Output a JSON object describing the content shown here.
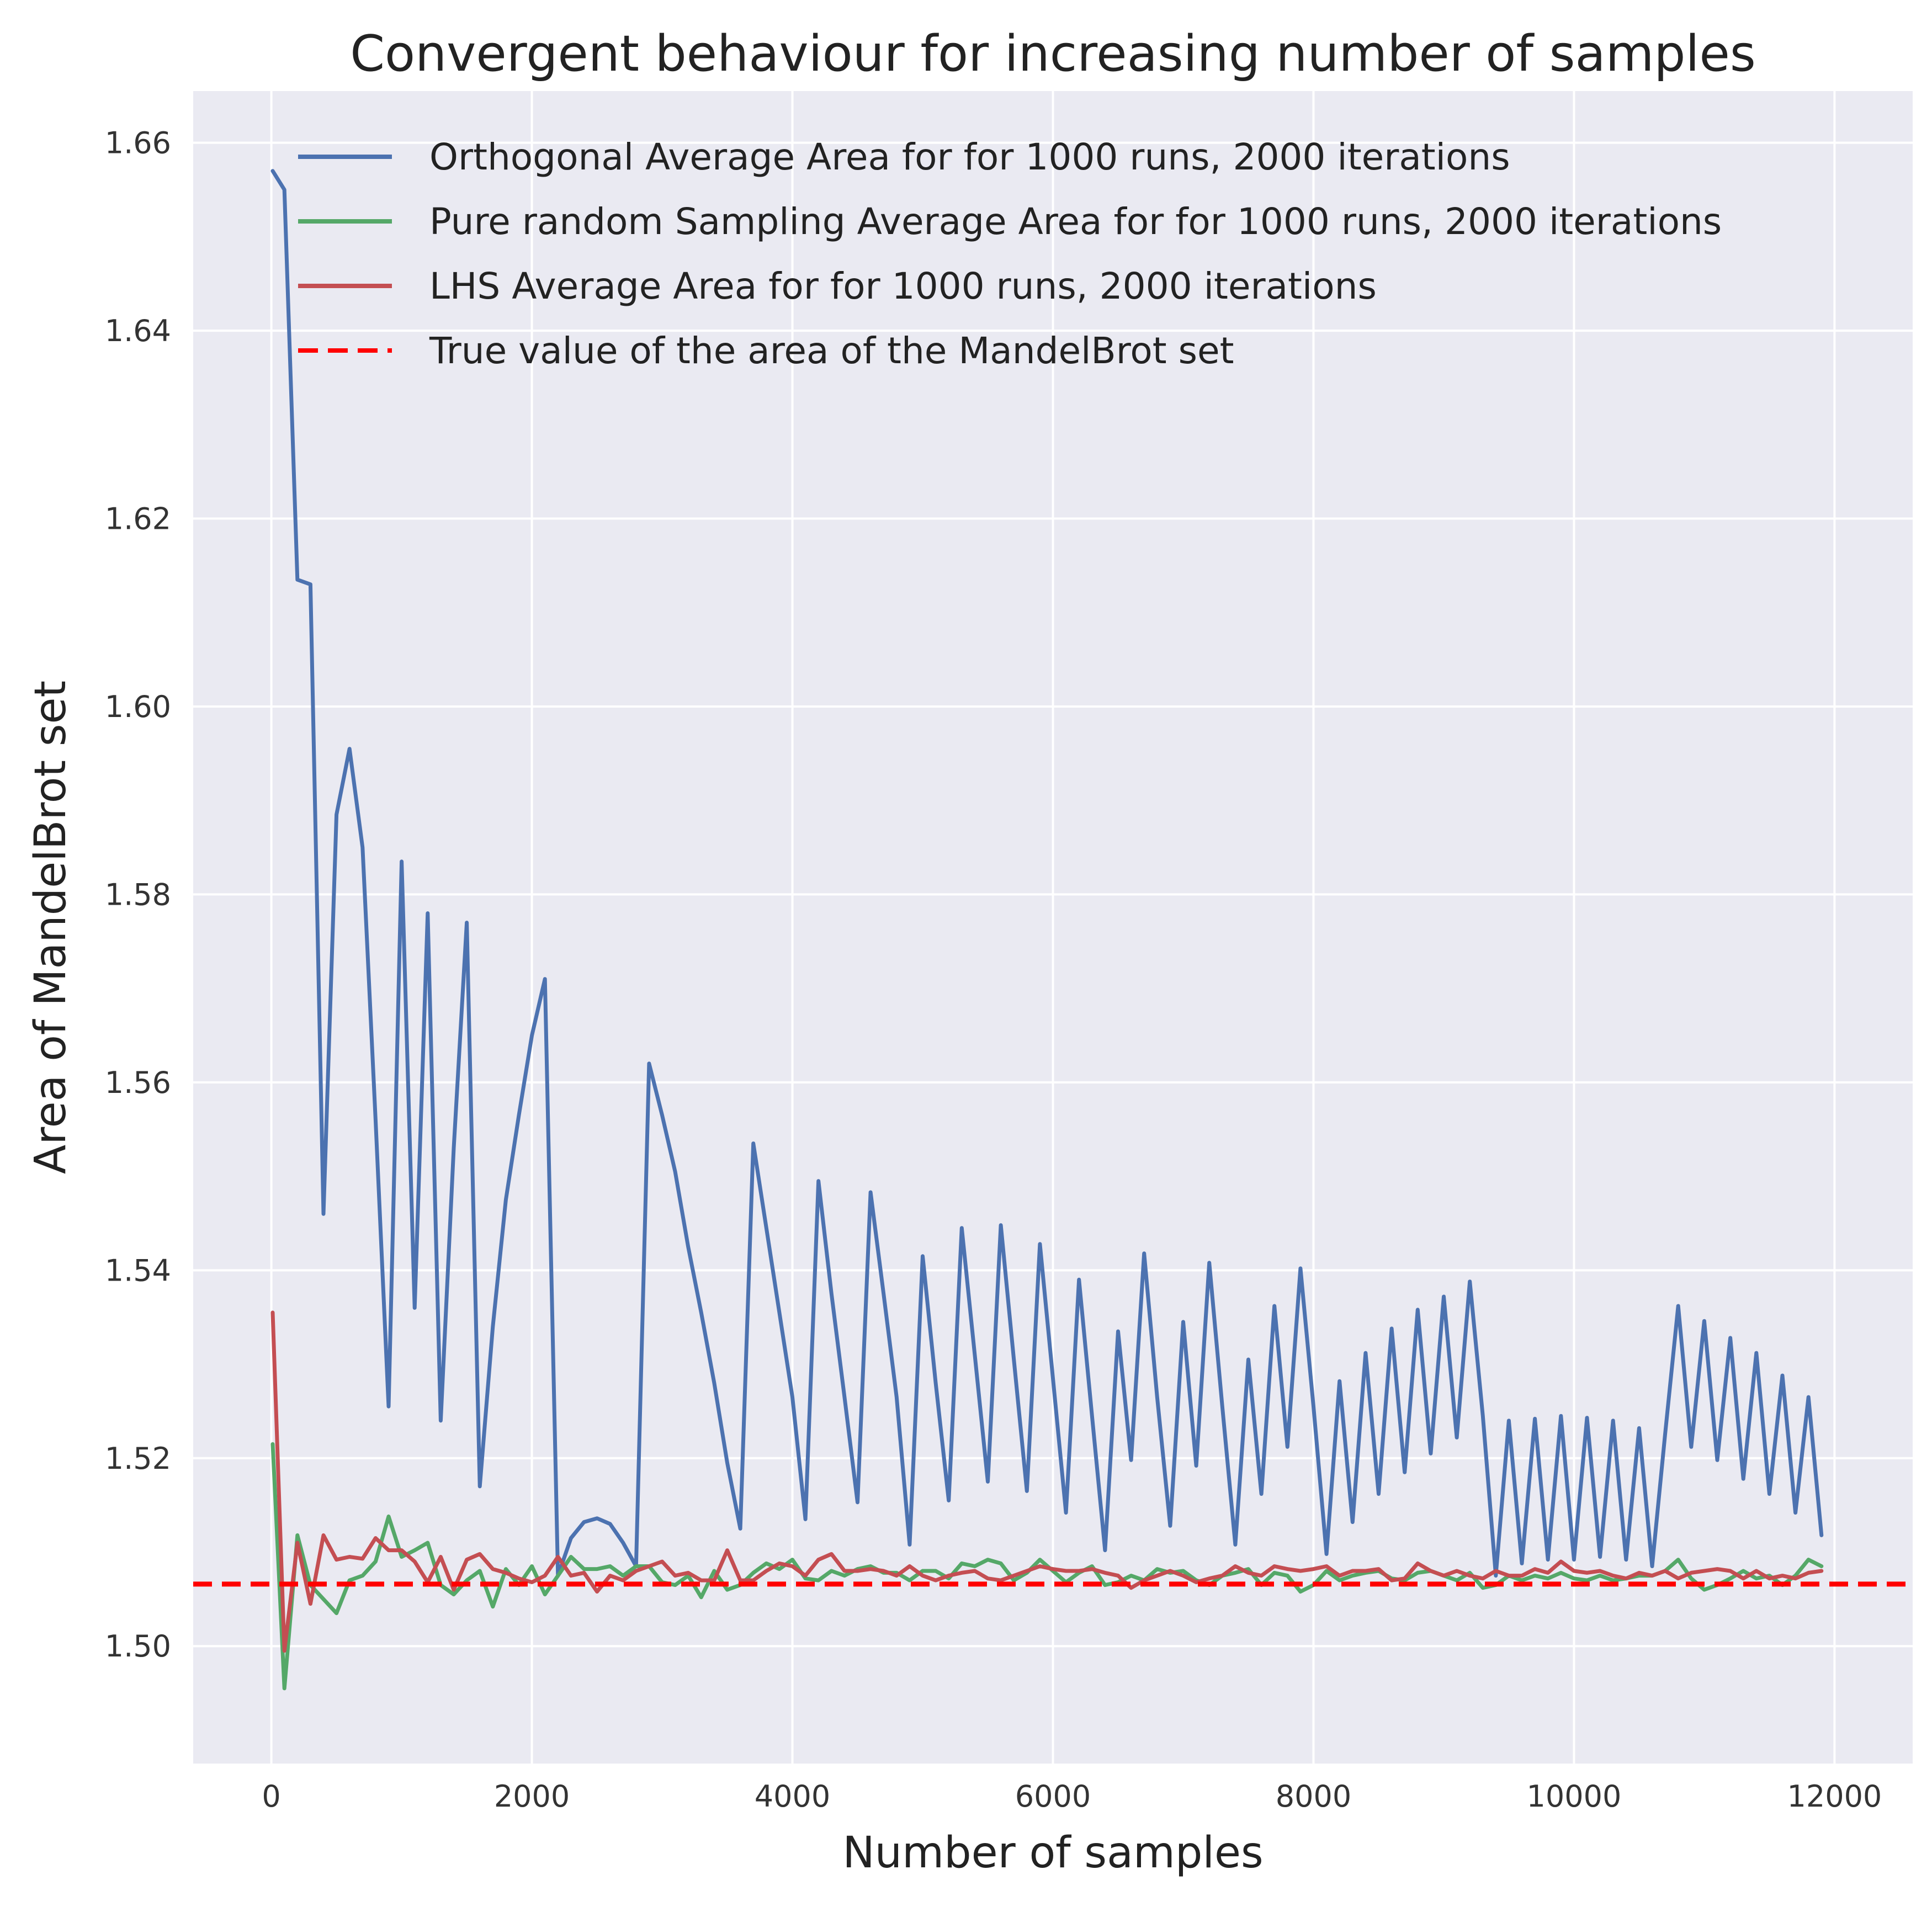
{
  "chart_data": {
    "type": "line",
    "title": "Convergent behaviour for increasing number of samples",
    "xlabel": "Number of samples",
    "ylabel": "Area of MandelBrot set",
    "xlim": [
      -600,
      12600
    ],
    "ylim": [
      1.4875,
      1.6655
    ],
    "xticks": [
      0,
      2000,
      4000,
      6000,
      8000,
      10000,
      12000
    ],
    "yticks": [
      1.5,
      1.52,
      1.54,
      1.56,
      1.58,
      1.6,
      1.62,
      1.64,
      1.66
    ],
    "grid": true,
    "background": "#eaeaf2",
    "legend_position": "top-right",
    "series": [
      {
        "name": "Orthogonal Average Area for for 1000 runs, 2000 iterations",
        "color": "#4c72b0",
        "style": "solid",
        "x": [
          10,
          100,
          200,
          300,
          400,
          500,
          600,
          700,
          800,
          900,
          1000,
          1100,
          1200,
          1300,
          1400,
          1500,
          1600,
          1700,
          1800,
          1900,
          2000,
          2100,
          2200,
          2300,
          2400,
          2500,
          2600,
          2700,
          2800,
          2900,
          3000,
          3100,
          3200,
          3300,
          3400,
          3500,
          3600,
          3700,
          3800,
          3900,
          4000,
          4100,
          4200,
          4300,
          4400,
          4500,
          4600,
          4700,
          4800,
          4900,
          5000,
          5100,
          5200,
          5300,
          5400,
          5500,
          5600,
          5700,
          5800,
          5900,
          6000,
          6100,
          6200,
          6300,
          6400,
          6500,
          6600,
          6700,
          6800,
          6900,
          7000,
          7100,
          7200,
          7300,
          7400,
          7500,
          7600,
          7700,
          7800,
          7900,
          8000,
          8100,
          8200,
          8300,
          8400,
          8500,
          8600,
          8700,
          8800,
          8900,
          9000,
          9100,
          9200,
          9300,
          9400,
          9500,
          9600,
          9700,
          9800,
          9900,
          10000,
          10100,
          10200,
          10300,
          10400,
          10500,
          10600,
          10700,
          10800,
          10900,
          11000,
          11100,
          11200,
          11300,
          11400,
          11500,
          11600,
          11700,
          11800,
          11900
        ],
        "y": [
          1.657,
          1.655,
          1.6135,
          1.613,
          1.546,
          1.5885,
          1.5955,
          1.585,
          1.556,
          1.5255,
          1.5835,
          1.536,
          1.578,
          1.524,
          1.553,
          1.577,
          1.517,
          1.534,
          1.5475,
          1.5565,
          1.565,
          1.571,
          1.5075,
          1.5115,
          1.5132,
          1.5136,
          1.513,
          1.511,
          1.5085,
          1.562,
          1.5565,
          1.5505,
          1.5425,
          1.5355,
          1.528,
          1.5195,
          1.5125,
          1.5535,
          1.5445,
          1.5355,
          1.5265,
          1.5135,
          1.5495,
          1.5375,
          1.5265,
          1.5153,
          1.5483,
          1.5375,
          1.5265,
          1.5108,
          1.5415,
          1.528,
          1.5155,
          1.5445,
          1.531,
          1.5175,
          1.5448,
          1.5305,
          1.5165,
          1.5428,
          1.5285,
          1.5142,
          1.539,
          1.5245,
          1.5102,
          1.5335,
          1.5198,
          1.5418,
          1.5265,
          1.5128,
          1.5345,
          1.5192,
          1.5408,
          1.5255,
          1.5108,
          1.5305,
          1.5162,
          1.5362,
          1.5212,
          1.5402,
          1.5255,
          1.5098,
          1.5282,
          1.5132,
          1.5312,
          1.5162,
          1.5338,
          1.5185,
          1.5358,
          1.5205,
          1.5372,
          1.5222,
          1.5388,
          1.5245,
          1.5075,
          1.524,
          1.5088,
          1.5242,
          1.5092,
          1.5245,
          1.5092,
          1.5243,
          1.5095,
          1.524,
          1.5092,
          1.5232,
          1.5085,
          1.5226,
          1.5362,
          1.5212,
          1.5346,
          1.5198,
          1.5328,
          1.5178,
          1.5312,
          1.5162,
          1.5288,
          1.5142,
          1.5265,
          1.5118
        ]
      },
      {
        "name": "Pure random Sampling Average Area for for 1000 runs, 2000 iterations",
        "color": "#55a868",
        "style": "solid",
        "x": [
          10,
          100,
          200,
          300,
          400,
          500,
          600,
          700,
          800,
          900,
          1000,
          1100,
          1200,
          1300,
          1400,
          1500,
          1600,
          1700,
          1800,
          1900,
          2000,
          2100,
          2200,
          2300,
          2400,
          2500,
          2600,
          2700,
          2800,
          2900,
          3000,
          3100,
          3200,
          3300,
          3400,
          3500,
          3600,
          3700,
          3800,
          3900,
          4000,
          4100,
          4200,
          4300,
          4400,
          4500,
          4600,
          4700,
          4800,
          4900,
          5000,
          5100,
          5200,
          5300,
          5400,
          5500,
          5600,
          5700,
          5800,
          5900,
          6000,
          6100,
          6200,
          6300,
          6400,
          6500,
          6600,
          6700,
          6800,
          6900,
          7000,
          7100,
          7200,
          7300,
          7400,
          7500,
          7600,
          7700,
          7800,
          7900,
          8000,
          8100,
          8200,
          8300,
          8400,
          8500,
          8600,
          8700,
          8800,
          8900,
          9000,
          9100,
          9200,
          9300,
          9400,
          9500,
          9600,
          9700,
          9800,
          9900,
          10000,
          10100,
          10200,
          10300,
          10400,
          10500,
          10600,
          10700,
          10800,
          10900,
          11000,
          11100,
          11200,
          11300,
          11400,
          11500,
          11600,
          11700,
          11800,
          11900
        ],
        "y": [
          1.5215,
          1.4955,
          1.5118,
          1.5065,
          1.505,
          1.5035,
          1.507,
          1.5075,
          1.509,
          1.5138,
          1.5095,
          1.5102,
          1.511,
          1.5065,
          1.5055,
          1.507,
          1.508,
          1.5042,
          1.5082,
          1.5065,
          1.5085,
          1.5055,
          1.5075,
          1.5095,
          1.5082,
          1.5082,
          1.5085,
          1.5075,
          1.5085,
          1.5085,
          1.5068,
          1.5065,
          1.5075,
          1.5052,
          1.508,
          1.506,
          1.5065,
          1.5078,
          1.5088,
          1.5082,
          1.5092,
          1.5072,
          1.507,
          1.508,
          1.5075,
          1.5082,
          1.5085,
          1.5078,
          1.5078,
          1.507,
          1.508,
          1.508,
          1.5072,
          1.5088,
          1.5085,
          1.5092,
          1.5088,
          1.507,
          1.5078,
          1.5092,
          1.508,
          1.5068,
          1.5078,
          1.5085,
          1.5065,
          1.5068,
          1.5075,
          1.507,
          1.5082,
          1.5078,
          1.508,
          1.507,
          1.5065,
          1.5075,
          1.5078,
          1.5082,
          1.5065,
          1.5078,
          1.5075,
          1.5058,
          1.5065,
          1.508,
          1.507,
          1.5075,
          1.5078,
          1.508,
          1.5072,
          1.507,
          1.5078,
          1.508,
          1.5075,
          1.507,
          1.5078,
          1.5062,
          1.5065,
          1.5075,
          1.507,
          1.5075,
          1.5072,
          1.5078,
          1.5072,
          1.507,
          1.5075,
          1.507,
          1.5072,
          1.5075,
          1.5075,
          1.508,
          1.5092,
          1.5072,
          1.506,
          1.5065,
          1.5072,
          1.508,
          1.5072,
          1.5075,
          1.5065,
          1.5075,
          1.5092,
          1.5085
        ]
      },
      {
        "name": "LHS Average Area for for 1000 runs, 2000 iterations",
        "color": "#c44e52",
        "style": "solid",
        "x": [
          10,
          100,
          200,
          300,
          400,
          500,
          600,
          700,
          800,
          900,
          1000,
          1100,
          1200,
          1300,
          1400,
          1500,
          1600,
          1700,
          1800,
          1900,
          2000,
          2100,
          2200,
          2300,
          2400,
          2500,
          2600,
          2700,
          2800,
          2900,
          3000,
          3100,
          3200,
          3300,
          3400,
          3500,
          3600,
          3700,
          3800,
          3900,
          4000,
          4100,
          4200,
          4300,
          4400,
          4500,
          4600,
          4700,
          4800,
          4900,
          5000,
          5100,
          5200,
          5300,
          5400,
          5500,
          5600,
          5700,
          5800,
          5900,
          6000,
          6100,
          6200,
          6300,
          6400,
          6500,
          6600,
          6700,
          6800,
          6900,
          7000,
          7100,
          7200,
          7300,
          7400,
          7500,
          7600,
          7700,
          7800,
          7900,
          8000,
          8100,
          8200,
          8300,
          8400,
          8500,
          8600,
          8700,
          8800,
          8900,
          9000,
          9100,
          9200,
          9300,
          9400,
          9500,
          9600,
          9700,
          9800,
          9900,
          10000,
          10100,
          10200,
          10300,
          10400,
          10500,
          10600,
          10700,
          10800,
          10900,
          11000,
          11100,
          11200,
          11300,
          11400,
          11500,
          11600,
          11700,
          11800,
          11900
        ],
        "y": [
          1.5355,
          1.4995,
          1.511,
          1.5045,
          1.5118,
          1.5092,
          1.5095,
          1.5093,
          1.5115,
          1.5102,
          1.5102,
          1.509,
          1.5068,
          1.5095,
          1.506,
          1.5092,
          1.5098,
          1.5082,
          1.5078,
          1.5072,
          1.5068,
          1.5075,
          1.5095,
          1.5075,
          1.5078,
          1.5058,
          1.5075,
          1.507,
          1.508,
          1.5085,
          1.509,
          1.5075,
          1.5078,
          1.507,
          1.507,
          1.5102,
          1.507,
          1.507,
          1.508,
          1.5088,
          1.5085,
          1.5075,
          1.5092,
          1.5098,
          1.508,
          1.508,
          1.5082,
          1.508,
          1.5075,
          1.5085,
          1.5075,
          1.507,
          1.5075,
          1.5078,
          1.508,
          1.5072,
          1.507,
          1.5075,
          1.508,
          1.5085,
          1.5082,
          1.508,
          1.508,
          1.5082,
          1.5078,
          1.5075,
          1.5062,
          1.507,
          1.5075,
          1.508,
          1.5075,
          1.5068,
          1.5072,
          1.5075,
          1.5085,
          1.5078,
          1.5075,
          1.5085,
          1.5082,
          1.508,
          1.5082,
          1.5085,
          1.5075,
          1.508,
          1.508,
          1.5082,
          1.507,
          1.5072,
          1.5088,
          1.508,
          1.5075,
          1.508,
          1.5075,
          1.5072,
          1.508,
          1.5075,
          1.5075,
          1.5082,
          1.5078,
          1.509,
          1.508,
          1.5078,
          1.508,
          1.5075,
          1.5072,
          1.5078,
          1.5075,
          1.508,
          1.5072,
          1.5078,
          1.508,
          1.5082,
          1.508,
          1.5072,
          1.508,
          1.5072,
          1.5075,
          1.5072,
          1.5078,
          1.508
        ]
      },
      {
        "name": "True value of the area of the MandelBrot set",
        "color": "#ff0000",
        "style": "dashed",
        "hline": 1.5066
      }
    ]
  }
}
